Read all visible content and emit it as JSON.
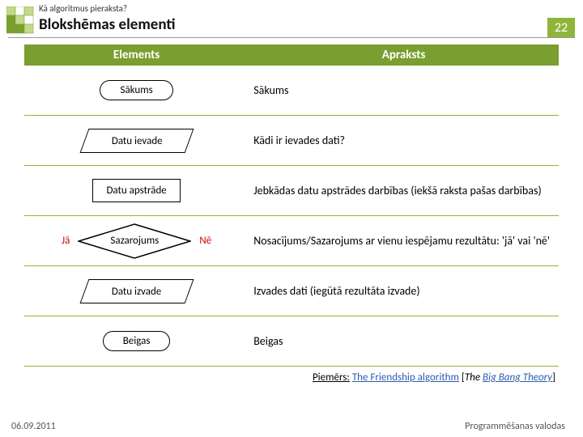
{
  "header": {
    "subtitle": "Kā algoritmus pieraksta?",
    "title": "Blokshēmas elementi",
    "slide_number": "22"
  },
  "colors": {
    "accent_green": "#7a9e2f",
    "light_green": "#8fb53a",
    "text": "#000000",
    "border": "#000000",
    "link": "#2a5db0",
    "yesno": "#c00000"
  },
  "table": {
    "head_left": "Elements",
    "head_right": "Apraksts",
    "rows": [
      {
        "shape": "terminator",
        "label": "Sākums",
        "desc": "Sākums"
      },
      {
        "shape": "parallelogram",
        "label": "Datu ievade",
        "desc": "Kādi ir ievades dati?"
      },
      {
        "shape": "process",
        "label": "Datu apstrāde",
        "desc": "Jebkādas datu apstrādes darbības (iekšā raksta pašas darbības)"
      },
      {
        "shape": "diamond",
        "label": "Sazarojums",
        "yes": "Jā",
        "no": "Nē",
        "desc": "Nosacījums/Sazarojums ar vienu iespējamu rezultātu: 'jā' vai 'nē'"
      },
      {
        "shape": "parallelogram",
        "label": "Datu izvade",
        "desc": "Izvades dati (iegūtā rezultāta izvade)"
      },
      {
        "shape": "terminator",
        "label": "Beigas",
        "desc": "Beigas"
      }
    ]
  },
  "example": {
    "prefix": "Piemērs:",
    "link_text": "The Friendship algorithm",
    "source_prefix": "[",
    "source_italic": "The",
    "source_link": "Big Bang Theory",
    "source_suffix": "]"
  },
  "footer": {
    "date": "06.09.2011",
    "course": "Programmēšanas valodas"
  },
  "logo": {
    "cells": [
      [
        "#c5d98a",
        "#ffffff",
        "#c5d98a"
      ],
      [
        "#7a9e2f",
        "#c5d98a",
        "#ffffff"
      ],
      [
        "#7a9e2f",
        "#7a9e2f",
        "#c5d98a"
      ]
    ],
    "cell_size": 11
  }
}
